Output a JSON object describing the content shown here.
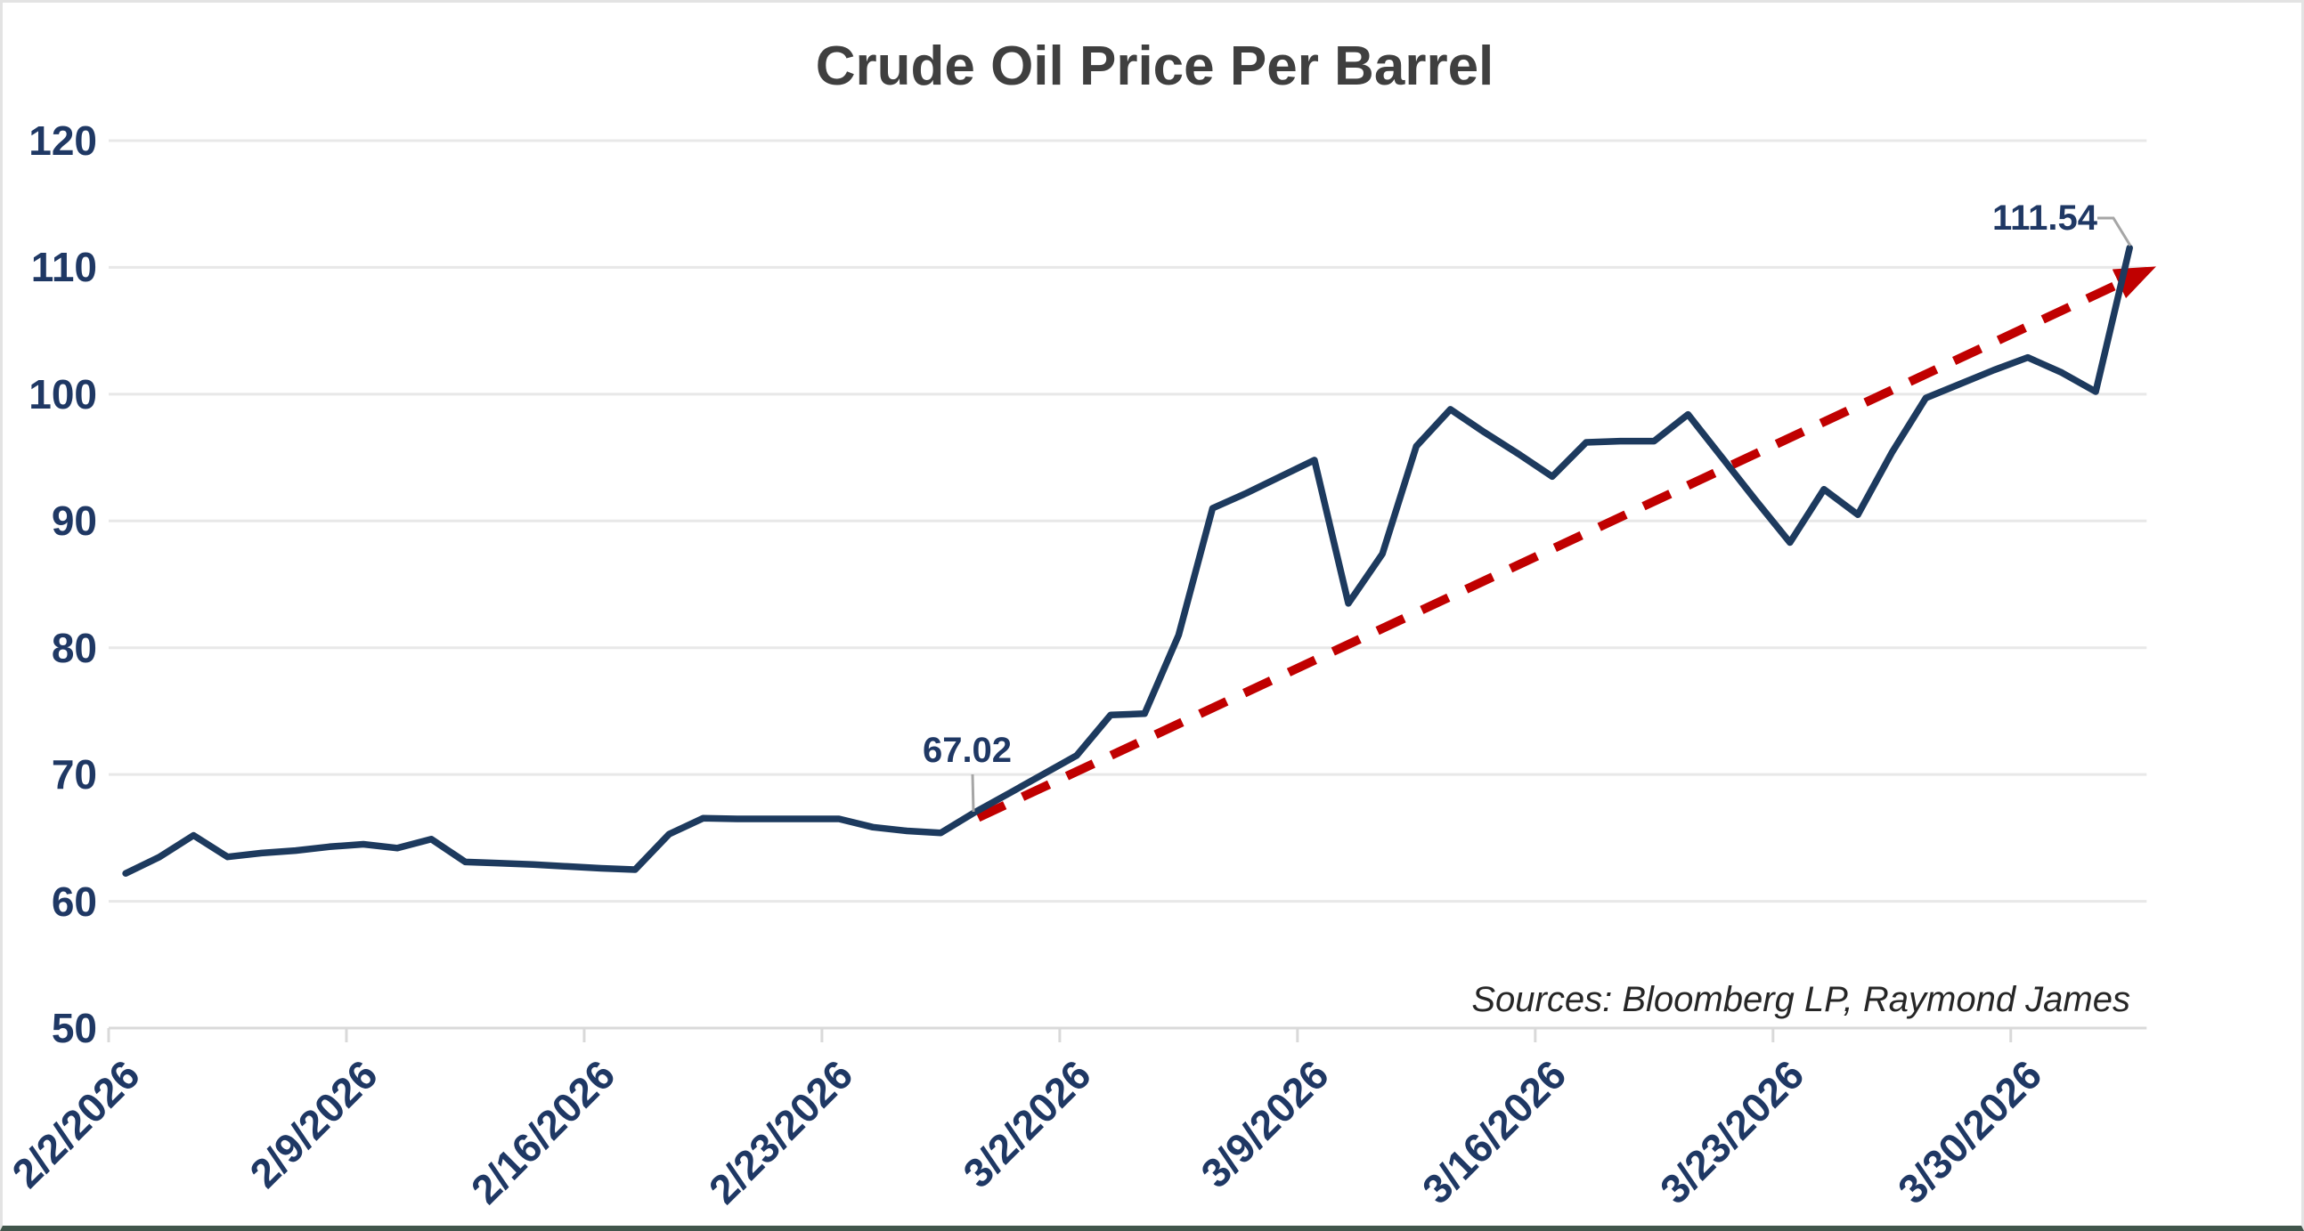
{
  "title": "Crude Oil Price Per Barrel",
  "source_note": "Sources: Bloomberg LP, Raymond James",
  "colors": {
    "price_line": "#1d3a5e",
    "trend_arrow": "#c00000",
    "axis_labels": "#1f3864",
    "title_text": "#3f3f3f",
    "gridline": "#e8e8e8",
    "axis_line": "#d9d9d9",
    "callout": "#a6a6a6",
    "bottom_border": "#41564b"
  },
  "chart_data": {
    "type": "line",
    "title": "Crude Oil Price Per Barrel",
    "ylim": [
      50,
      120
    ],
    "grid": "horizontal",
    "y_tick_labels": [
      "120",
      "110",
      "100",
      "90",
      "80",
      "70",
      "60",
      "50"
    ],
    "x_tick_labels": [
      "2/2/2026",
      "2/9/2026",
      "2/16/2026",
      "2/23/2026",
      "3/2/2026",
      "3/9/2026",
      "3/16/2026",
      "3/23/2026",
      "3/30/2026"
    ],
    "x": [
      "2/2/2026",
      "2/3/2026",
      "2/4/2026",
      "2/5/2026",
      "2/6/2026",
      "2/7/2026",
      "2/8/2026",
      "2/9/2026",
      "2/10/2026",
      "2/11/2026",
      "2/12/2026",
      "2/13/2026",
      "2/14/2026",
      "2/15/2026",
      "2/16/2026",
      "2/17/2026",
      "2/18/2026",
      "2/19/2026",
      "2/20/2026",
      "2/21/2026",
      "2/22/2026",
      "2/23/2026",
      "2/24/2026",
      "2/25/2026",
      "2/26/2026",
      "2/27/2026",
      "2/28/2026",
      "3/1/2026",
      "3/2/2026",
      "3/3/2026",
      "3/4/2026",
      "3/5/2026",
      "3/6/2026",
      "3/7/2026",
      "3/8/2026",
      "3/9/2026",
      "3/10/2026",
      "3/11/2026",
      "3/12/2026",
      "3/13/2026",
      "3/14/2026",
      "3/15/2026",
      "3/16/2026",
      "3/17/2026",
      "3/18/2026",
      "3/19/2026",
      "3/20/2026",
      "3/21/2026",
      "3/22/2026",
      "3/23/2026",
      "3/24/2026",
      "3/25/2026",
      "3/26/2026",
      "3/27/2026",
      "3/28/2026",
      "3/29/2026",
      "3/30/2026",
      "3/31/2026",
      "4/1/2026",
      "4/2/2026"
    ],
    "series": [
      {
        "name": "Crude Oil Price Per Barrel",
        "values": [
          62.2,
          63.5,
          65.2,
          63.5,
          63.8,
          64.0,
          64.3,
          64.5,
          64.2,
          64.9,
          63.1,
          63.0,
          62.9,
          62.75,
          62.6,
          62.5,
          65.3,
          66.55,
          66.5,
          66.5,
          66.5,
          66.5,
          65.85,
          65.55,
          65.4,
          67.02,
          68.5,
          70.0,
          71.5,
          74.7,
          74.8,
          81.0,
          91.0,
          92.2,
          93.5,
          94.8,
          83.5,
          87.4,
          95.9,
          98.8,
          97.0,
          95.3,
          93.5,
          96.2,
          96.3,
          96.3,
          98.4,
          95.0,
          91.6,
          88.3,
          92.5,
          90.5,
          95.4,
          99.7,
          100.8,
          101.9,
          102.9,
          101.7,
          100.2,
          111.54
        ]
      }
    ],
    "trend_arrow": {
      "style": "dashed",
      "start": {
        "index": 25.1,
        "value": 66.6
      },
      "end": {
        "index": 59.4,
        "value": 109.6
      }
    },
    "annotations": [
      {
        "label": "67.02",
        "date": "2/27/2026",
        "value": 67.02
      },
      {
        "label": "111.54",
        "date": "4/2/2026",
        "value": 111.54
      }
    ]
  }
}
